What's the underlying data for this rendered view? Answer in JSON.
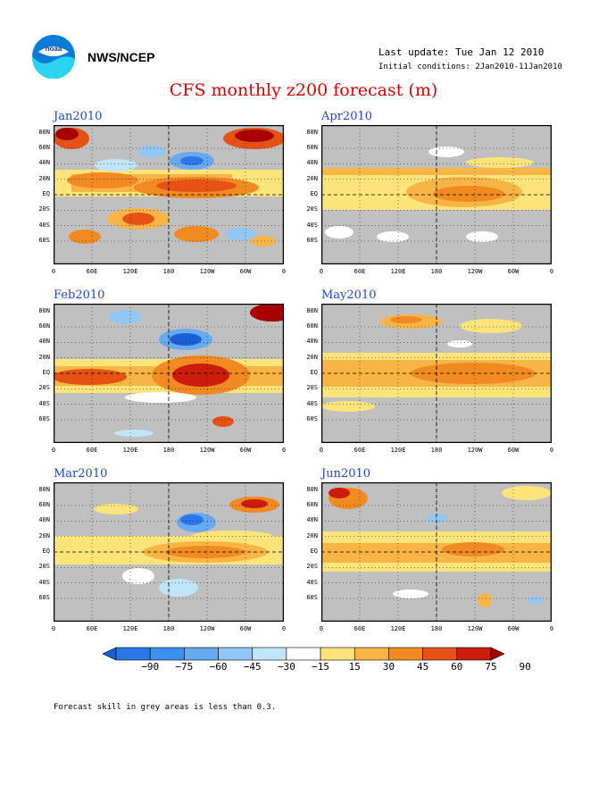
{
  "header": {
    "org_label": "NWS/NCEP",
    "last_update": "Last update: Tue Jan 12 2010",
    "initial_conditions": "Initial conditions: 2Jan2010-11Jan2010",
    "title": "CFS monthly z200 forecast (m)"
  },
  "logo": {
    "icon": "noaa-logo-icon",
    "text": "noaa"
  },
  "lat_labels": [
    "80N",
    "60N",
    "40N",
    "20N",
    "EQ",
    "20S",
    "40S",
    "60S"
  ],
  "lon_labels": [
    "0",
    "60E",
    "120E",
    "180",
    "120W",
    "60W",
    "0"
  ],
  "panels": [
    {
      "title": "Jan2010"
    },
    {
      "title": "Apr2010"
    },
    {
      "title": "Feb2010"
    },
    {
      "title": "May2010"
    },
    {
      "title": "Mar2010"
    },
    {
      "title": "Jun2010"
    }
  ],
  "colorbar": {
    "labels": [
      "−90",
      "−75",
      "−60",
      "−45",
      "−30",
      "−15",
      "15",
      "30",
      "45",
      "60",
      "75",
      "90"
    ],
    "colors": [
      "#1a5fd8",
      "#2a78e8",
      "#3c90ee",
      "#68aaf0",
      "#92c6f4",
      "#c0e4f8",
      "#ffffff",
      "#fde47a",
      "#f9b446",
      "#f28a22",
      "#e65214",
      "#cc1c0c",
      "#a80000"
    ]
  },
  "colors": {
    "grey_mask": "#c0c0c0",
    "title_red": "#d80000",
    "panel_title_blue": "#1e45d8"
  },
  "footnote": "Forecast skill in grey areas is less than 0.3."
}
